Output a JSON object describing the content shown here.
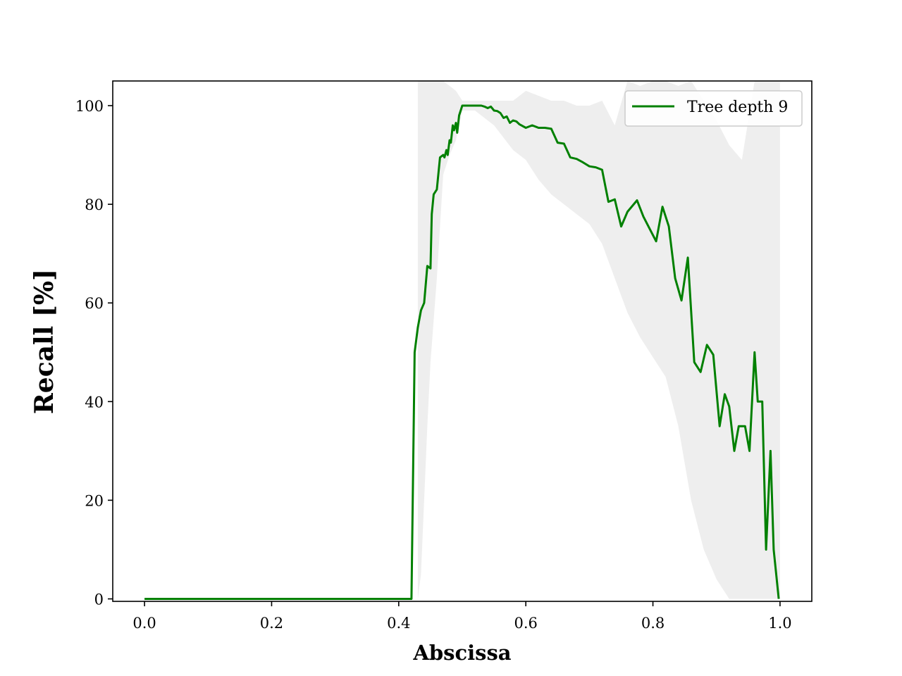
{
  "chart_data": {
    "type": "line",
    "title": "",
    "xlabel": "Abscissa",
    "ylabel": "Recall [%]",
    "xlim": [
      -0.05,
      1.05
    ],
    "ylim": [
      -0.5,
      105
    ],
    "xticks": [
      "0.0",
      "0.2",
      "0.4",
      "0.6",
      "0.8",
      "1.0"
    ],
    "yticks": [
      "0",
      "20",
      "40",
      "60",
      "80",
      "100"
    ],
    "grid": false,
    "legend_position": "top-right",
    "colors": {
      "line": "#008000",
      "band": "#d9d9d9",
      "axes": "#000000"
    },
    "series": [
      {
        "name": "Tree depth 9",
        "x": [
          0.0,
          0.42,
          0.425,
          0.43,
          0.435,
          0.44,
          0.445,
          0.45,
          0.452,
          0.455,
          0.46,
          0.465,
          0.47,
          0.472,
          0.475,
          0.477,
          0.48,
          0.482,
          0.485,
          0.487,
          0.49,
          0.492,
          0.495,
          0.5,
          0.52,
          0.53,
          0.535,
          0.54,
          0.545,
          0.55,
          0.555,
          0.56,
          0.565,
          0.57,
          0.575,
          0.58,
          0.585,
          0.59,
          0.6,
          0.61,
          0.62,
          0.63,
          0.64,
          0.65,
          0.66,
          0.67,
          0.68,
          0.69,
          0.7,
          0.71,
          0.72,
          0.73,
          0.74,
          0.75,
          0.76,
          0.775,
          0.785,
          0.795,
          0.805,
          0.815,
          0.825,
          0.835,
          0.845,
          0.855,
          0.865,
          0.875,
          0.885,
          0.895,
          0.905,
          0.913,
          0.92,
          0.928,
          0.935,
          0.94,
          0.945,
          0.952,
          0.96,
          0.965,
          0.972,
          0.978,
          0.985,
          0.99,
          0.998
        ],
        "y": [
          0,
          0,
          50,
          55,
          58.5,
          60,
          67.5,
          67,
          78,
          82,
          83,
          89.5,
          90,
          89.5,
          91,
          90,
          93,
          92.5,
          96,
          95,
          96.5,
          94.5,
          98,
          100,
          100,
          100,
          99.8,
          99.5,
          99.8,
          99,
          98.9,
          98.5,
          97.5,
          97.8,
          96.5,
          97,
          96.8,
          96.2,
          95.5,
          96,
          95.5,
          95.5,
          95.3,
          92.5,
          92.3,
          89.5,
          89.2,
          88.5,
          87.7,
          87.5,
          87,
          80.5,
          81,
          75.5,
          78.5,
          80.8,
          77.5,
          75,
          72.5,
          79.5,
          75.5,
          65,
          60.5,
          69.2,
          48,
          46,
          51.5,
          49.5,
          35,
          41.5,
          39,
          30,
          35,
          35,
          35,
          30,
          50,
          40,
          40,
          10,
          30,
          10,
          0
        ]
      }
    ],
    "band": {
      "name": "",
      "x": [
        0.43,
        0.435,
        0.44,
        0.445,
        0.45,
        0.46,
        0.47,
        0.48,
        0.49,
        0.5,
        0.52,
        0.55,
        0.58,
        0.6,
        0.62,
        0.64,
        0.66,
        0.68,
        0.7,
        0.72,
        0.74,
        0.76,
        0.78,
        0.8,
        0.82,
        0.84,
        0.86,
        0.88,
        0.9,
        0.92,
        0.94,
        0.96,
        0.98,
        0.99,
        1.0
      ],
      "upper": [
        105,
        105,
        105,
        105,
        105,
        105,
        105,
        104,
        103,
        101,
        101,
        101,
        101,
        103,
        102,
        101,
        101,
        100,
        100,
        101,
        96,
        105,
        104,
        105,
        105,
        104,
        105,
        101,
        97,
        92,
        89,
        105,
        105,
        105,
        105
      ],
      "lower": [
        0,
        5,
        20,
        35,
        48,
        65,
        86,
        90,
        93,
        99,
        99,
        96,
        91,
        89,
        85,
        82,
        80,
        78,
        76,
        72,
        65,
        58,
        53,
        49,
        45,
        35,
        20,
        10,
        4,
        0,
        0,
        0,
        0,
        0,
        0
      ]
    }
  }
}
